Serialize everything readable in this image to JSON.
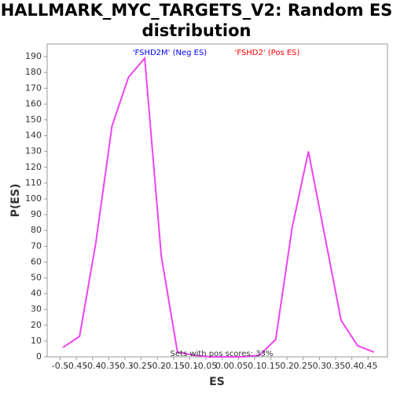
{
  "chart_data": {
    "type": "line",
    "title": "HALLMARK_MYC_TARGETS_V2: Random ES distribution",
    "x_label": "ES",
    "y_label": "P(ES)",
    "annotations": [
      {
        "text": "'FSHD2M' (Neg ES)",
        "color": "#0000ff"
      },
      {
        "text": "'FSHD2' (Pos ES)",
        "color": "#ff0000"
      },
      {
        "text": "Sets with pos scores: 33%",
        "color": "#333333"
      }
    ],
    "x": [
      -0.491,
      -0.44,
      -0.39,
      -0.34,
      -0.289,
      -0.239,
      -0.188,
      -0.138,
      -0.087,
      -0.037,
      0.014,
      0.064,
      0.115,
      0.165,
      0.216,
      0.266,
      0.317,
      0.367,
      0.418,
      0.468
    ],
    "series": [
      {
        "color": "#ee44ee",
        "values": [
          6,
          13,
          72,
          146,
          177,
          189,
          64,
          3,
          1,
          0,
          0,
          0,
          1,
          11,
          82,
          130,
          76,
          23,
          7,
          3
        ]
      }
    ],
    "xlim": [
      -0.54,
      0.51
    ],
    "ylim": [
      0,
      198
    ],
    "xticks": [
      -0.5,
      -0.45,
      -0.4,
      -0.35,
      -0.3,
      -0.25,
      -0.2,
      -0.15,
      -0.1,
      -0.05,
      {
        "value": 0,
        "label": "0.0"
      },
      0.05,
      0.1,
      0.15,
      0.2,
      0.25,
      0.3,
      0.35,
      0.4,
      0.45
    ],
    "yticks": [
      0,
      10,
      20,
      30,
      40,
      50,
      60,
      70,
      80,
      90,
      100,
      110,
      120,
      130,
      140,
      150,
      160,
      170,
      180,
      190
    ],
    "grid": false
  }
}
